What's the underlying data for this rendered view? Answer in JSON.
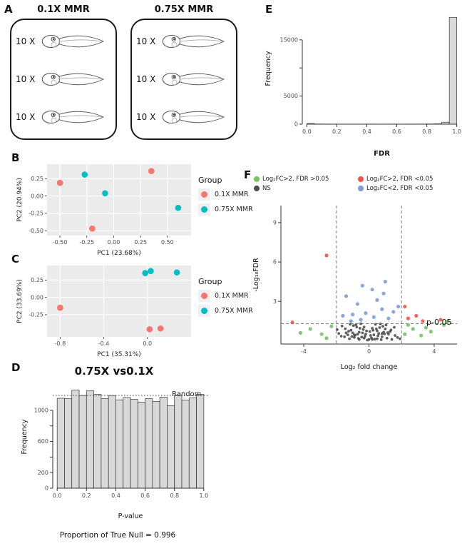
{
  "panels": {
    "A": {
      "label": "A",
      "boxes": [
        {
          "title": "0.1X MMR",
          "rows": [
            "10 X",
            "10 X",
            "10 X"
          ]
        },
        {
          "title": "0.75X MMR",
          "rows": [
            "10 X",
            "10 X",
            "10 X"
          ]
        }
      ]
    },
    "B": {
      "label": "B",
      "legend": {
        "title": "Group",
        "items": [
          {
            "label": "0.1X MMR",
            "color": "#F8766D"
          },
          {
            "label": "0.75X MMR",
            "color": "#00BFC4"
          }
        ]
      }
    },
    "C": {
      "label": "C",
      "legend": {
        "title": "Group",
        "items": [
          {
            "label": "0.1X MMR",
            "color": "#F8766D"
          },
          {
            "label": "0.75X MMR",
            "color": "#00BFC4"
          }
        ]
      }
    },
    "D": {
      "label": "D",
      "title": "0.75X vs0.1X",
      "random_label": "Random",
      "footer": "Proportion of True Null = 0.996"
    },
    "E": {
      "label": "E"
    },
    "F": {
      "label": "F",
      "pvalue_label": "p-0.05",
      "legend": [
        {
          "label": "Log₂FC>2, FDR >0.05",
          "color": "#74c265"
        },
        {
          "label": "Log₂FC>2, FDR <0.05",
          "color": "#ec564b"
        },
        {
          "label": "NS",
          "color": "#4d4d4d"
        },
        {
          "label": "Log₂FC<2, FDR <0.05",
          "color": "#7e9bd8"
        }
      ]
    }
  },
  "chart_data": [
    {
      "id": "pca_b",
      "type": "scatter",
      "panel": "B",
      "style": "ggplot",
      "xlabel": "PC1 (23.68%)",
      "ylabel": "PC2 (20.94%)",
      "xlim": [
        -0.62,
        0.72
      ],
      "ylim": [
        -0.57,
        0.46
      ],
      "x_ticks": [
        -0.5,
        -0.25,
        0.0,
        0.25,
        0.5
      ],
      "x_tick_labels": [
        "-0.50",
        "-0.25",
        "0.00",
        "0.25",
        "0.50"
      ],
      "y_ticks": [
        -0.5,
        -0.25,
        0.0,
        0.25
      ],
      "y_tick_labels": [
        "-0.50",
        "-0.25",
        "0.00",
        "0.25"
      ],
      "series": [
        {
          "name": "0.1X MMR",
          "color": "#F8766D",
          "points": [
            [
              -0.5,
              0.19
            ],
            [
              0.35,
              0.36
            ],
            [
              -0.2,
              -0.47
            ]
          ]
        },
        {
          "name": "0.75X MMR",
          "color": "#00BFC4",
          "points": [
            [
              -0.27,
              0.31
            ],
            [
              -0.08,
              0.04
            ],
            [
              0.6,
              -0.17
            ]
          ]
        }
      ]
    },
    {
      "id": "pca_c",
      "type": "scatter",
      "panel": "C",
      "style": "ggplot",
      "xlabel": "PC1 (35.31%)",
      "ylabel": "PC2 (33.69%)",
      "xlim": [
        -0.92,
        0.4
      ],
      "ylim": [
        -0.57,
        0.46
      ],
      "x_ticks": [
        -0.8,
        -0.4,
        0.0
      ],
      "x_tick_labels": [
        "-0.8",
        "-0.4",
        "0.0"
      ],
      "y_ticks": [
        -0.25,
        0.0,
        0.25
      ],
      "y_tick_labels": [
        "-0.25",
        "0.00",
        "0.25"
      ],
      "series": [
        {
          "name": "0.1X MMR",
          "color": "#F8766D",
          "points": [
            [
              -0.8,
              -0.15
            ],
            [
              0.02,
              -0.46
            ],
            [
              0.12,
              -0.45
            ]
          ]
        },
        {
          "name": "0.75X MMR",
          "color": "#00BFC4",
          "points": [
            [
              -0.02,
              0.35
            ],
            [
              0.03,
              0.38
            ],
            [
              0.27,
              0.36
            ]
          ]
        }
      ]
    },
    {
      "id": "pval_hist_d",
      "type": "bar",
      "panel": "D",
      "style": "histogram",
      "title": "0.75X vs0.1X",
      "xlabel": "P-value",
      "ylabel": "Frequency",
      "note": "Proportion of True Null = 0.996",
      "bin_start": 0,
      "bin_width": 0.05,
      "counts": [
        1155,
        1150,
        1260,
        1190,
        1250,
        1205,
        1150,
        1190,
        1135,
        1165,
        1140,
        1105,
        1150,
        1115,
        1170,
        1060,
        1195,
        1130,
        1160,
        1205
      ],
      "xlim": [
        -0.03,
        1.03
      ],
      "ylim": [
        0,
        1320
      ],
      "x_ticks": [
        0,
        0.2,
        0.4,
        0.6,
        0.8,
        1.0
      ],
      "x_tick_labels": [
        "0.0",
        "0.2",
        "0.4",
        "0.6",
        "0.8",
        "1.0"
      ],
      "y_ticks": [
        0,
        200,
        400,
        600,
        800,
        1000
      ],
      "y_tick_labels": [
        "0",
        "200",
        "",
        "600",
        "",
        "1000"
      ],
      "bar_fill": "#d9d9d9",
      "ref_line": {
        "value": 1190,
        "label": "Random",
        "style": "dotted"
      }
    },
    {
      "id": "fdr_hist_e",
      "type": "bar",
      "panel": "E",
      "style": "histogram",
      "xlabel": "FDR",
      "ylabel": "Frequency",
      "bin_start": 0,
      "bin_width": 0.05,
      "counts": [
        120,
        40,
        30,
        25,
        20,
        20,
        20,
        20,
        25,
        20,
        20,
        25,
        20,
        25,
        25,
        30,
        40,
        70,
        350,
        19000
      ],
      "xlim": [
        -0.03,
        1.03
      ],
      "ylim": [
        0,
        19800
      ],
      "x_ticks": [
        0,
        0.2,
        0.4,
        0.6,
        0.8,
        1.0
      ],
      "x_tick_labels": [
        "0.0",
        "0.2",
        "0.4",
        "0.6",
        "0.8",
        "1.0"
      ],
      "y_ticks": [
        0,
        5000,
        10000,
        15000
      ],
      "y_tick_labels": [
        "0",
        "5000",
        "",
        "15000"
      ],
      "bar_fill": "#d9d9d9"
    },
    {
      "id": "volcano_f",
      "type": "scatter",
      "panel": "F",
      "style": "volcano",
      "xlabel": "Log₂ fold change",
      "ylabel": "-Log₁₀FDR",
      "xlim": [
        -5.4,
        5.4
      ],
      "ylim": [
        -0.25,
        10.3
      ],
      "x_ticks": [
        -4,
        0,
        4
      ],
      "x_tick_labels": [
        "-4",
        "0",
        "4"
      ],
      "y_ticks": [
        3,
        6,
        9
      ],
      "y_tick_labels": [
        "3",
        "6",
        "9"
      ],
      "vlines": [
        -2,
        2
      ],
      "hline": 1.3,
      "hline_label": "p-0.05",
      "series": [
        {
          "name": "NS",
          "color": "#4d4d4d",
          "r": 1.9,
          "points": [
            [
              -0.1,
              0.05
            ],
            [
              0.2,
              0.1
            ],
            [
              -0.3,
              0.2
            ],
            [
              0.5,
              0.15
            ],
            [
              -0.6,
              0.1
            ],
            [
              0.8,
              0.3
            ],
            [
              -0.9,
              0.25
            ],
            [
              1.1,
              0.2
            ],
            [
              -1.2,
              0.15
            ],
            [
              1.4,
              0.1
            ],
            [
              -1.5,
              0.3
            ],
            [
              0.1,
              0.4
            ],
            [
              -0.2,
              0.5
            ],
            [
              0.3,
              0.45
            ],
            [
              -0.4,
              0.6
            ],
            [
              0.6,
              0.55
            ],
            [
              -0.7,
              0.5
            ],
            [
              0.9,
              0.65
            ],
            [
              -1.0,
              0.6
            ],
            [
              1.2,
              0.5
            ],
            [
              -1.3,
              0.45
            ],
            [
              1.6,
              0.4
            ],
            [
              -1.7,
              0.35
            ],
            [
              0.05,
              0.7
            ],
            [
              -0.15,
              0.75
            ],
            [
              0.25,
              0.8
            ],
            [
              -0.35,
              0.85
            ],
            [
              0.45,
              0.9
            ],
            [
              -0.55,
              0.95
            ],
            [
              0.65,
              1.0
            ],
            [
              -0.75,
              1.05
            ],
            [
              0.85,
              1.1
            ],
            [
              -0.95,
              1.15
            ],
            [
              1.05,
              1.2
            ],
            [
              -1.15,
              1.25
            ],
            [
              0.0,
              0.1
            ],
            [
              0.15,
              0.22
            ],
            [
              -0.25,
              0.33
            ],
            [
              0.35,
              0.12
            ],
            [
              -0.45,
              0.28
            ],
            [
              0.55,
              0.38
            ],
            [
              -0.65,
              0.18
            ],
            [
              0.75,
              0.08
            ],
            [
              -0.85,
              0.42
            ],
            [
              0.95,
              0.52
            ],
            [
              -1.05,
              0.32
            ],
            [
              1.15,
              0.62
            ],
            [
              -1.25,
              0.72
            ],
            [
              1.35,
              0.82
            ],
            [
              -1.45,
              0.92
            ],
            [
              1.55,
              1.02
            ],
            [
              -1.65,
              1.12
            ],
            [
              1.75,
              0.25
            ],
            [
              -1.85,
              0.55
            ],
            [
              1.9,
              0.15
            ],
            [
              -1.95,
              0.85
            ],
            [
              0.4,
              1.25
            ],
            [
              -0.5,
              1.3
            ],
            [
              0.7,
              1.28
            ],
            [
              -0.8,
              1.22
            ],
            [
              1.0,
              0.9
            ],
            [
              -1.1,
              0.8
            ],
            [
              1.3,
              0.7
            ],
            [
              -1.4,
              0.6
            ],
            [
              0.2,
              0.95
            ],
            [
              -0.3,
              1.05
            ],
            [
              0.5,
              0.75
            ],
            [
              -0.6,
              0.65
            ],
            [
              0.8,
              0.55
            ],
            [
              -0.9,
              0.45
            ]
          ]
        },
        {
          "name": "Log₂FC>2, FDR >0.05",
          "color": "#74c265",
          "r": 2.6,
          "points": [
            [
              -3.6,
              0.9
            ],
            [
              -2.9,
              0.5
            ],
            [
              -2.3,
              1.1
            ],
            [
              2.2,
              0.5
            ],
            [
              2.7,
              0.9
            ],
            [
              3.2,
              0.4
            ],
            [
              3.8,
              0.7
            ],
            [
              4.6,
              1.2
            ],
            [
              -4.2,
              0.6
            ],
            [
              2.4,
              1.2
            ],
            [
              -2.6,
              0.2
            ],
            [
              3.5,
              1.0
            ],
            [
              4.8,
              1.45
            ]
          ]
        },
        {
          "name": "Log₂FC<2, FDR <0.05",
          "color": "#7e9bd8",
          "r": 2.6,
          "points": [
            [
              -0.5,
              1.6
            ],
            [
              0.3,
              1.8
            ],
            [
              -0.2,
              2.1
            ],
            [
              0.8,
              2.4
            ],
            [
              -1.0,
              2.0
            ],
            [
              1.2,
              1.7
            ],
            [
              -0.7,
              2.8
            ],
            [
              0.5,
              3.1
            ],
            [
              -1.4,
              3.4
            ],
            [
              0.2,
              3.9
            ],
            [
              -0.4,
              4.2
            ],
            [
              1.0,
              4.5
            ],
            [
              -1.6,
              1.9
            ],
            [
              1.5,
              2.2
            ],
            [
              0.9,
              3.6
            ],
            [
              -1.1,
              1.5
            ],
            [
              1.8,
              2.6
            ]
          ]
        },
        {
          "name": "Log₂FC>2, FDR <0.05",
          "color": "#ec564b",
          "r": 2.6,
          "points": [
            [
              -2.6,
              6.5
            ],
            [
              2.4,
              1.7
            ],
            [
              2.9,
              1.9
            ],
            [
              3.3,
              1.5
            ],
            [
              4.4,
              1.6
            ],
            [
              -4.7,
              1.4
            ],
            [
              2.2,
              2.6
            ]
          ]
        }
      ]
    }
  ]
}
